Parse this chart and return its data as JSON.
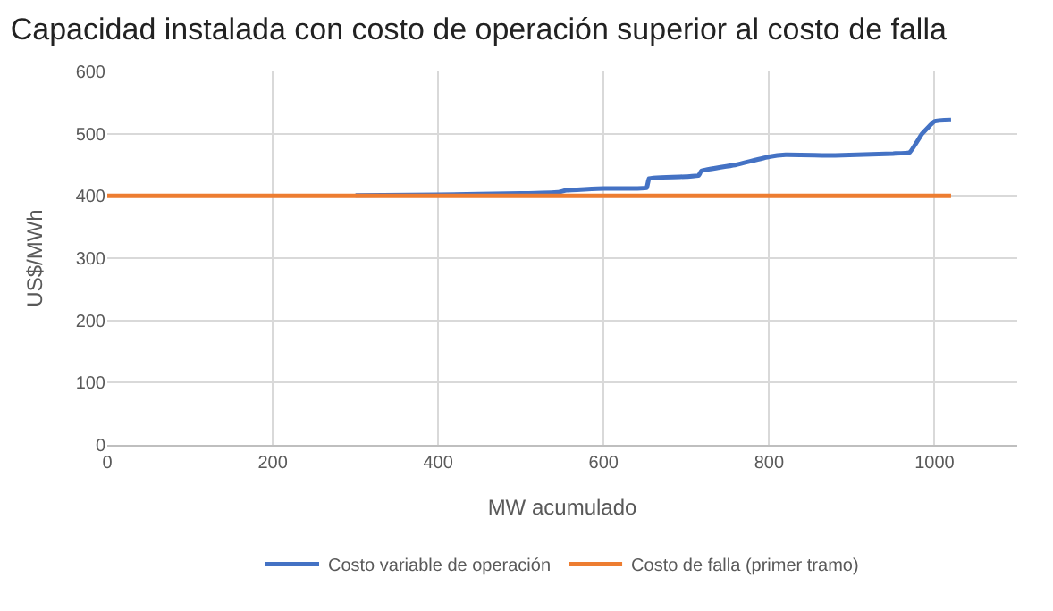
{
  "chart_data": {
    "type": "line",
    "title": "Capacidad instalada con costo de operación superior al costo de falla",
    "xlabel": "MW acumulado",
    "ylabel": "US$/MWh",
    "series": [
      {
        "name": "Costo variable de operación",
        "color": "#4472c4",
        "x": [
          300,
          400,
          500,
          545,
          555,
          600,
          640,
          652,
          655,
          700,
          715,
          718,
          760,
          800,
          820,
          880,
          950,
          970,
          985,
          1000,
          1020
        ],
        "values": [
          401,
          402,
          404,
          406,
          409,
          412,
          412,
          413,
          428,
          431,
          433,
          440,
          450,
          463,
          466,
          465,
          468,
          470,
          500,
          520,
          522
        ]
      },
      {
        "name": "Costo de falla (primer tramo)",
        "color": "#ed7d31",
        "x": [
          0,
          1020
        ],
        "values": [
          400,
          400
        ]
      }
    ],
    "xlim": [
      0,
      1100
    ],
    "xticks": [
      0,
      200,
      400,
      600,
      800,
      1000
    ],
    "ylim": [
      0,
      600
    ],
    "yticks": [
      0,
      100,
      200,
      300,
      400,
      500,
      600
    ],
    "grid": true,
    "legend": "bottom"
  }
}
